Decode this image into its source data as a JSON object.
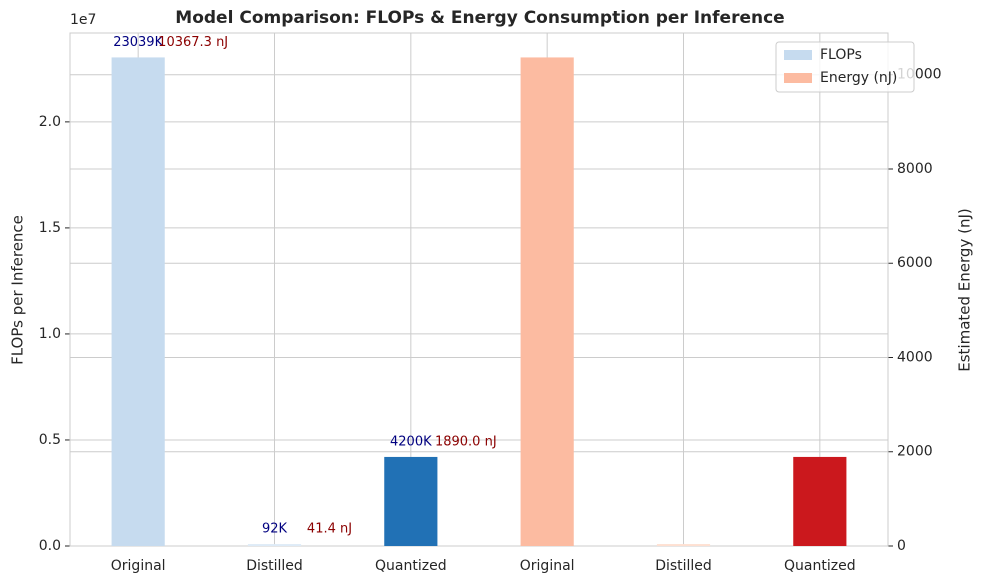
{
  "chart_data": {
    "type": "bar",
    "title": "Model Comparison: FLOPs & Energy Consumption per Inference",
    "categories": [
      "Original",
      "Distilled",
      "Quantized",
      "Original",
      "Distilled",
      "Quantized"
    ],
    "y_label": "FLOPs per Inference",
    "y2_label": "Estimated Energy (nJ)",
    "y_offset_label": "1e7",
    "ylim": [
      0,
      24190950
    ],
    "yticks": [
      {
        "value": 0,
        "label": "0.0"
      },
      {
        "value": 5000000,
        "label": "0.5"
      },
      {
        "value": 10000000,
        "label": "1.0"
      },
      {
        "value": 15000000,
        "label": "1.5"
      },
      {
        "value": 20000000,
        "label": "2.0"
      }
    ],
    "y2lim": [
      0,
      10885.7
    ],
    "y2ticks": [
      0,
      2000,
      4000,
      6000,
      8000,
      10000
    ],
    "grid": true,
    "legend": "upper right",
    "series": [
      {
        "name": "FLOPs",
        "color": "#c6dbef",
        "colors": [
          "#c6dbef",
          "#deebf7",
          "#2171b5",
          null,
          null,
          null
        ],
        "values": [
          23039000,
          92000,
          4200000,
          null,
          null,
          null
        ],
        "value_labels": [
          "23039K",
          "92K",
          "4200K",
          null,
          null,
          null
        ],
        "label_color": "#000080"
      },
      {
        "name": "Energy (nJ)",
        "color": "#fcbba1",
        "axis": "y2",
        "colors": [
          null,
          null,
          null,
          "#fcbba1",
          "#fee0d2",
          "#cb181d"
        ],
        "values": [
          null,
          null,
          null,
          10367.3,
          41.4,
          1890.0
        ],
        "value_labels": [
          null,
          null,
          null,
          "10367.3 nJ",
          "41.4 nJ",
          "1890.0 nJ"
        ],
        "label_color": "#8b0000"
      }
    ]
  }
}
